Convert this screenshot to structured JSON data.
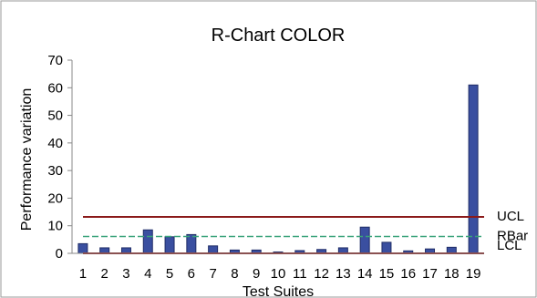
{
  "chart_data": {
    "type": "bar",
    "title": "R-Chart COLOR",
    "xlabel": "Test Suites",
    "ylabel": "Performance variation",
    "categories": [
      "1",
      "2",
      "3",
      "4",
      "5",
      "6",
      "7",
      "8",
      "9",
      "10",
      "11",
      "12",
      "13",
      "14",
      "15",
      "16",
      "17",
      "18",
      "19"
    ],
    "values": [
      3.5,
      2.0,
      2.0,
      8.5,
      6.0,
      6.8,
      2.7,
      1.2,
      1.2,
      0.5,
      1.0,
      1.4,
      2.0,
      9.5,
      4.0,
      0.9,
      1.6,
      2.2,
      61
    ],
    "ylim": [
      0,
      70
    ],
    "yticks": [
      0,
      10,
      20,
      30,
      40,
      50,
      60,
      70
    ],
    "grid": false,
    "reference_lines": [
      {
        "label": "UCL",
        "value": 13.2,
        "color": "#8b1a1a"
      },
      {
        "label": "RBar",
        "value": 6.1,
        "color": "#3aa37a"
      },
      {
        "label": "LCL",
        "value": 0,
        "color": "#8b1a1a"
      }
    ],
    "colors": {
      "bar_fill": "#3a4fa0",
      "bar_stroke": "#1f2c66",
      "axis": "#888888",
      "frame": "#9a9a9a"
    }
  }
}
